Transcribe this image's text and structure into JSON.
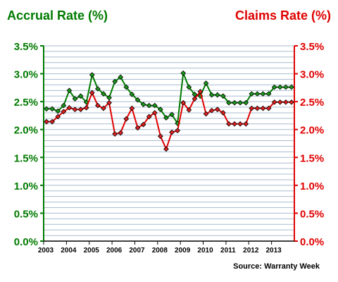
{
  "chart_data": {
    "type": "line",
    "title_left": "Accrual Rate (%)",
    "title_right": "Claims Rate (%)",
    "source": "Source: Warranty Week",
    "x_tick_labels": [
      "2003",
      "2004",
      "2005",
      "2006",
      "2007",
      "2008",
      "2009",
      "2010",
      "2011",
      "2012",
      "2013"
    ],
    "y_tick_labels": [
      "0.0%",
      "0.5%",
      "1.0%",
      "1.5%",
      "2.0%",
      "2.5%",
      "3.0%",
      "3.5%"
    ],
    "ylim": [
      0,
      3.5
    ],
    "grid": true,
    "colors": {
      "accrual": "#007a00",
      "claims": "#e00000",
      "grid": "#a8bcd0",
      "accrual_marker": "#1a9a1a",
      "claims_marker": "#e02020"
    },
    "series": [
      {
        "key": "accrual",
        "values": [
          2.37,
          2.37,
          2.33,
          2.43,
          2.7,
          2.55,
          2.6,
          2.49,
          2.98,
          2.73,
          2.64,
          2.57,
          2.86,
          2.94,
          2.76,
          2.63,
          2.53,
          2.45,
          2.43,
          2.43,
          2.36,
          2.21,
          2.27,
          2.11,
          3.01,
          2.76,
          2.63,
          2.6,
          2.83,
          2.62,
          2.62,
          2.6,
          2.48,
          2.48,
          2.48,
          2.48,
          2.64,
          2.64,
          2.64,
          2.64,
          2.76,
          2.76,
          2.76,
          2.76
        ]
      },
      {
        "key": "claims",
        "values": [
          2.14,
          2.14,
          2.23,
          2.32,
          2.39,
          2.36,
          2.36,
          2.39,
          2.66,
          2.43,
          2.38,
          2.48,
          1.92,
          1.94,
          2.19,
          2.38,
          2.03,
          2.09,
          2.23,
          2.3,
          1.88,
          1.65,
          1.95,
          1.98,
          2.48,
          2.35,
          2.55,
          2.68,
          2.28,
          2.34,
          2.36,
          2.3,
          2.1,
          2.1,
          2.1,
          2.1,
          2.38,
          2.38,
          2.38,
          2.38,
          2.49,
          2.49,
          2.49,
          2.49
        ]
      }
    ]
  }
}
